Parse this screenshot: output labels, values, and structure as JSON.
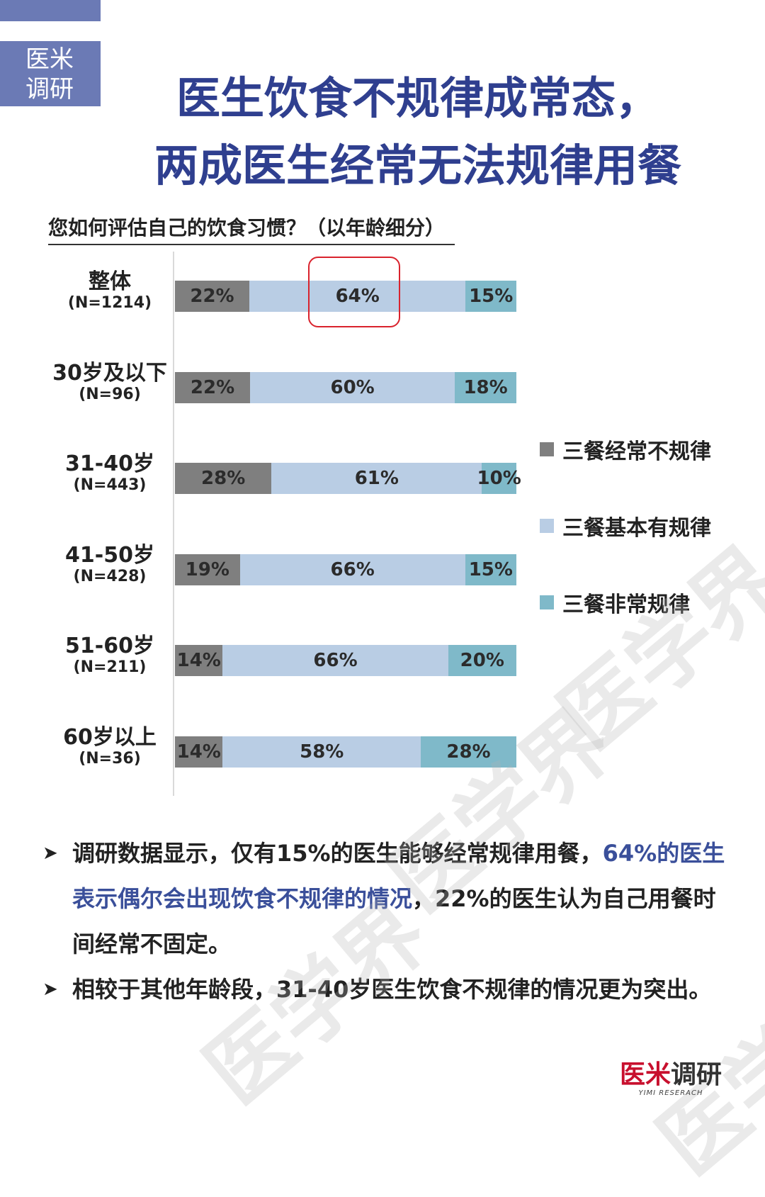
{
  "badge": {
    "line1": "医米",
    "line2": "调研"
  },
  "title": {
    "line1": "医生饮食不规律成常态，",
    "line2": "两成医生经常无法规律用餐"
  },
  "chart_data": {
    "type": "bar",
    "orientation": "horizontal",
    "stacked": "percent",
    "title": "您如何评估自己的饮食习惯？（以年龄细分）",
    "categories": [
      {
        "label": "整体",
        "n": "(N=1214)"
      },
      {
        "label": "30岁及以下",
        "n": "(N=96)"
      },
      {
        "label": "31-40岁",
        "n": "(N=443)"
      },
      {
        "label": "41-50岁",
        "n": "(N=428)"
      },
      {
        "label": "51-60岁",
        "n": "(N=211)"
      },
      {
        "label": "60岁以上",
        "n": "(N=36)"
      }
    ],
    "series": [
      {
        "name": "三餐经常不规律",
        "color": "#7f7f7f",
        "values": [
          22,
          22,
          28,
          19,
          14,
          14
        ]
      },
      {
        "name": "三餐基本有规律",
        "color": "#b9cde4",
        "values": [
          64,
          60,
          61,
          66,
          66,
          58
        ]
      },
      {
        "name": "三餐非常规律",
        "color": "#7fb9c9",
        "values": [
          15,
          18,
          10,
          15,
          20,
          28
        ]
      }
    ],
    "value_suffix": "%",
    "legend_position": "right",
    "highlight": {
      "category_index": 0,
      "series_index": 1,
      "color": "#d9232d"
    }
  },
  "bullets": [
    {
      "parts": [
        {
          "text": "调研数据显示，仅有15%的医生能够经常规律用餐，",
          "highlight": false
        },
        {
          "text": "64%的医生表示偶尔会出现饮食不规律的情况",
          "highlight": true
        },
        {
          "text": "，22%的医生认为自己用餐时间经常不固定。",
          "highlight": false
        }
      ]
    },
    {
      "parts": [
        {
          "text": "相较于其他年龄段，31-40岁医生饮食不规律的情况更为突出。",
          "highlight": false
        }
      ]
    }
  ],
  "watermark": "医学界",
  "logo": {
    "red": "医米",
    "dark": "调研",
    "sub": "YIMI RESERACH"
  }
}
